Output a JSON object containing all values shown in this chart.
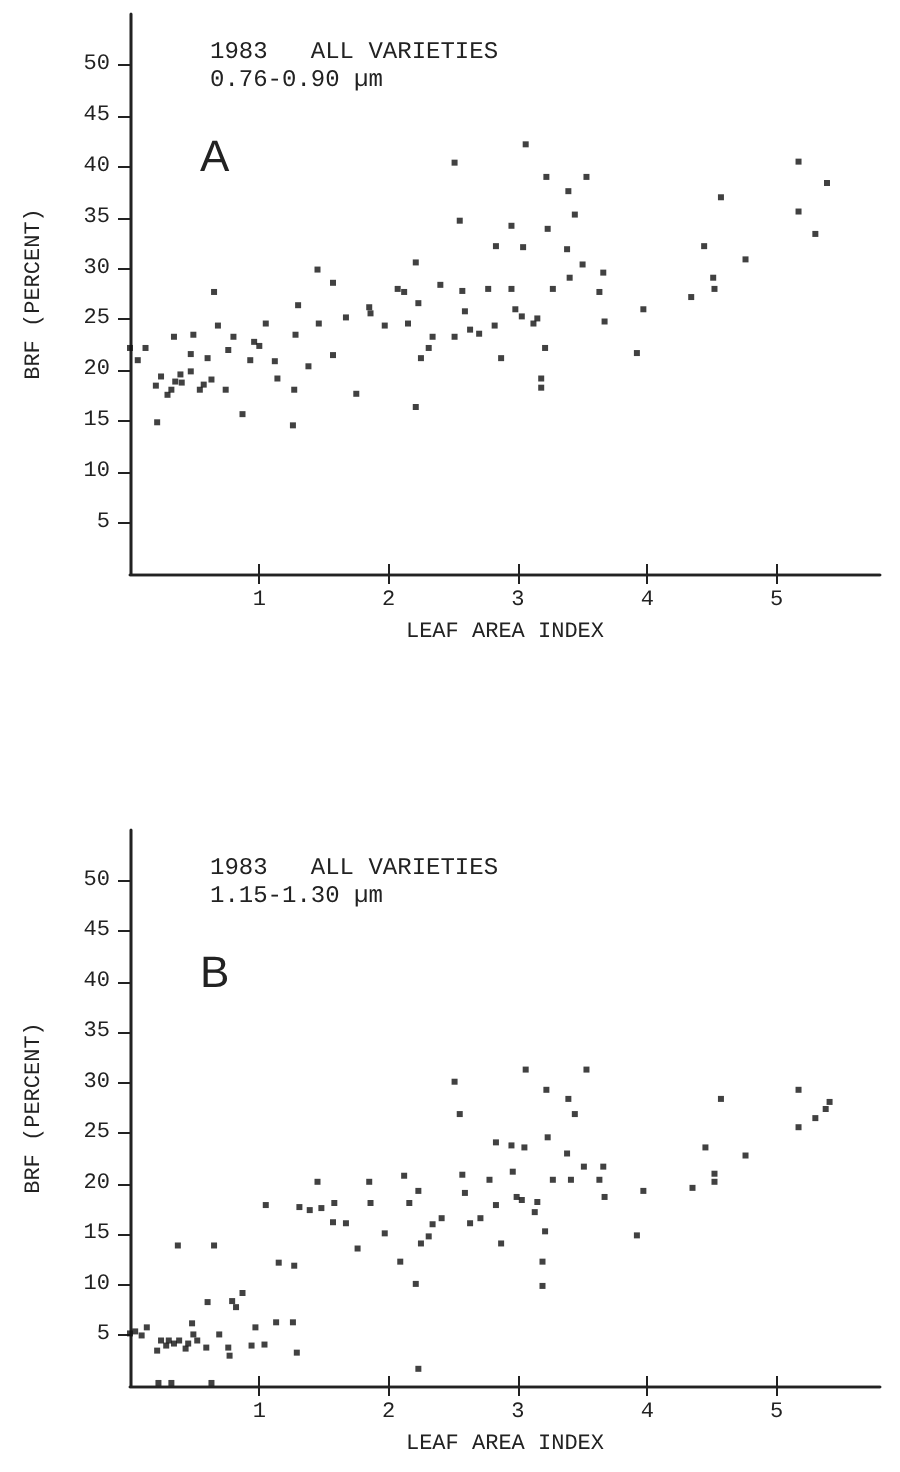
{
  "chart_data": [
    {
      "type": "scatter",
      "title": "1983   ALL VARIETIES",
      "subtitle": "0.76-0.90 µm",
      "annotations": [
        "A"
      ],
      "xlabel": "LEAF AREA INDEX",
      "ylabel": "BRF (PERCENT)",
      "xlim": [
        0,
        5.8
      ],
      "ylim": [
        0,
        55
      ],
      "xticks": [
        1,
        2,
        3,
        4,
        5
      ],
      "yticks": [
        5,
        10,
        15,
        20,
        25,
        30,
        35,
        40,
        45,
        50
      ],
      "marker": "square",
      "grid": false,
      "series": [
        {
          "color": "#111111",
          "x": [
            0.0,
            0.06,
            0.12,
            0.21,
            0.2,
            0.24,
            0.29,
            0.32,
            0.35,
            0.34,
            0.39,
            0.4,
            0.47,
            0.49,
            0.47,
            0.54,
            0.57,
            0.6,
            0.63,
            0.65,
            0.68,
            0.74,
            0.76,
            0.8,
            0.87,
            0.93,
            0.96,
            1.0,
            1.05,
            1.12,
            1.14,
            1.26,
            1.27,
            1.28,
            1.3,
            1.38,
            1.45,
            1.46,
            1.57,
            1.57,
            1.67,
            1.75,
            1.85,
            1.86,
            1.97,
            2.07,
            2.12,
            2.15,
            2.21,
            2.21,
            2.23,
            2.25,
            2.31,
            2.34,
            2.4,
            2.51,
            2.51,
            2.55,
            2.57,
            2.59,
            2.63,
            2.7,
            2.77,
            2.82,
            2.83,
            2.87,
            2.95,
            2.95,
            2.98,
            3.03,
            3.04,
            3.06,
            3.12,
            3.15,
            3.18,
            3.18,
            3.21,
            3.22,
            3.23,
            3.27,
            3.38,
            3.39,
            3.4,
            3.44,
            3.5,
            3.53,
            3.63,
            3.66,
            3.67,
            3.92,
            3.97,
            4.34,
            4.44,
            4.51,
            4.52,
            4.57,
            4.76,
            5.17,
            5.17,
            5.3,
            5.39
          ],
          "values": [
            22.2,
            21.0,
            22.2,
            14.9,
            18.5,
            19.4,
            17.6,
            18.1,
            18.9,
            23.3,
            19.6,
            18.8,
            19.9,
            23.5,
            21.6,
            18.1,
            18.6,
            21.2,
            19.1,
            27.7,
            24.4,
            18.1,
            22.0,
            23.3,
            15.7,
            21.0,
            22.8,
            22.4,
            24.6,
            20.9,
            19.2,
            14.6,
            18.1,
            23.5,
            26.4,
            20.4,
            29.9,
            24.6,
            28.6,
            21.5,
            25.2,
            17.7,
            26.2,
            25.6,
            24.4,
            28.0,
            27.7,
            24.6,
            30.6,
            16.4,
            26.6,
            21.2,
            22.2,
            23.3,
            28.4,
            40.4,
            23.3,
            34.7,
            27.8,
            25.8,
            24.0,
            23.6,
            28.0,
            24.4,
            32.2,
            21.2,
            34.2,
            28.0,
            26.0,
            25.3,
            32.1,
            42.2,
            24.6,
            25.1,
            19.2,
            18.3,
            22.2,
            39.0,
            33.9,
            28.0,
            31.9,
            37.6,
            29.1,
            35.3,
            30.4,
            39.0,
            27.7,
            29.6,
            24.8,
            21.7,
            26.0,
            27.2,
            32.2,
            29.1,
            28.0,
            37.0,
            30.9,
            40.5,
            35.6,
            33.4,
            38.4
          ]
        }
      ]
    },
    {
      "type": "scatter",
      "title": "1983   ALL VARIETIES",
      "subtitle": "1.15-1.30 µm",
      "annotations": [
        "B"
      ],
      "xlabel": "LEAF AREA INDEX",
      "ylabel": "BRF (PERCENT)",
      "xlim": [
        0,
        5.8
      ],
      "ylim": [
        0,
        55
      ],
      "xticks": [
        1,
        2,
        3,
        4,
        5
      ],
      "yticks": [
        5,
        10,
        15,
        20,
        25,
        30,
        35,
        40,
        45,
        50
      ],
      "marker": "square",
      "grid": false,
      "series": [
        {
          "color": "#111111",
          "x": [
            0.0,
            0.04,
            0.09,
            0.13,
            0.21,
            0.24,
            0.28,
            0.3,
            0.34,
            0.37,
            0.38,
            0.43,
            0.45,
            0.48,
            0.49,
            0.52,
            0.59,
            0.6,
            0.65,
            0.69,
            0.76,
            0.77,
            0.79,
            0.82,
            0.87,
            0.94,
            0.97,
            1.04,
            1.05,
            1.13,
            1.15,
            1.26,
            1.27,
            1.29,
            1.31,
            1.39,
            1.45,
            1.48,
            1.57,
            1.58,
            1.67,
            1.76,
            1.85,
            1.86,
            1.97,
            2.09,
            2.12,
            2.16,
            2.21,
            2.23,
            2.23,
            2.25,
            2.31,
            2.34,
            2.41,
            2.51,
            2.55,
            2.57,
            2.59,
            2.63,
            0.22,
            0.32,
            0.63,
            2.71,
            2.78,
            2.83,
            2.83,
            2.87,
            2.95,
            2.96,
            2.99,
            3.03,
            3.05,
            3.06,
            3.13,
            3.15,
            3.19,
            3.19,
            3.21,
            3.22,
            3.23,
            3.27,
            3.38,
            3.39,
            3.41,
            3.44,
            3.51,
            3.53,
            3.63,
            3.66,
            3.67,
            3.92,
            3.97,
            4.35,
            4.45,
            4.52,
            4.52,
            4.57,
            4.76,
            5.17,
            5.17,
            5.3,
            5.38,
            5.41
          ],
          "values": [
            5.2,
            5.4,
            5.0,
            5.8,
            3.5,
            4.5,
            4.0,
            4.5,
            4.2,
            13.9,
            4.5,
            3.7,
            4.2,
            6.2,
            5.1,
            4.5,
            3.8,
            8.3,
            13.9,
            5.1,
            3.8,
            3.0,
            8.4,
            7.8,
            9.2,
            4.0,
            5.8,
            4.1,
            17.9,
            6.3,
            12.2,
            6.3,
            11.9,
            3.3,
            17.7,
            17.4,
            20.2,
            17.6,
            16.2,
            18.1,
            16.1,
            13.6,
            20.2,
            18.1,
            15.1,
            12.3,
            20.8,
            18.1,
            10.1,
            1.7,
            19.3,
            14.1,
            14.8,
            16.0,
            16.6,
            30.1,
            26.9,
            20.9,
            19.1,
            16.1,
            0.3,
            0.3,
            0.3,
            16.6,
            20.4,
            17.9,
            24.1,
            14.1,
            23.8,
            21.2,
            18.7,
            18.4,
            23.6,
            31.3,
            17.2,
            18.2,
            12.3,
            9.9,
            15.3,
            29.3,
            24.6,
            20.4,
            23.0,
            28.4,
            20.4,
            26.9,
            21.7,
            31.3,
            20.4,
            21.7,
            18.7,
            14.9,
            19.3,
            19.6,
            23.6,
            21.0,
            20.2,
            28.4,
            22.8,
            29.3,
            25.6,
            26.5,
            27.4,
            28.1
          ]
        }
      ]
    }
  ]
}
